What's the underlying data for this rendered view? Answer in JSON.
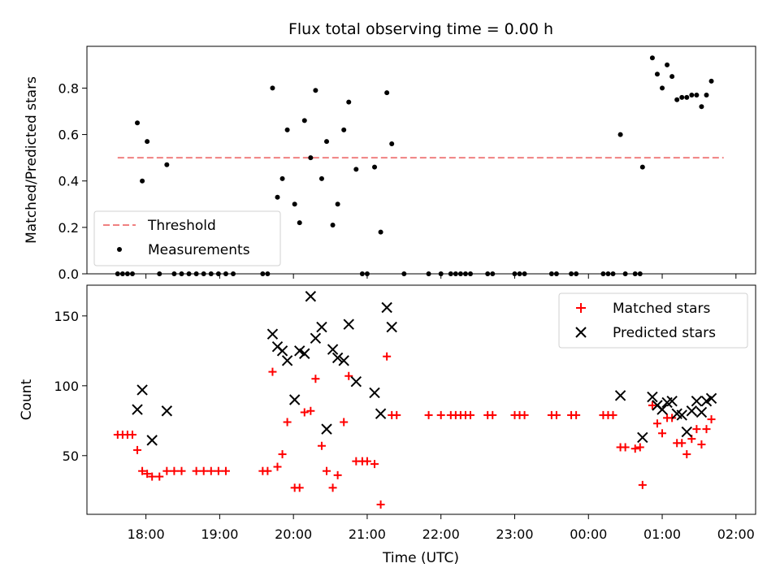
{
  "chart_data": [
    {
      "type": "scatter",
      "title": "Flux total observing time = 0.00 h",
      "xlabel": "",
      "ylabel": "Matched/Predicted stars",
      "ylim": [
        0,
        0.98
      ],
      "xlim": [
        "17:12",
        "02:16"
      ],
      "yticks": [
        0.0,
        0.2,
        0.4,
        0.6,
        0.8
      ],
      "ytick_labels": [
        "0.0",
        "0.2",
        "0.4",
        "0.6",
        "0.8"
      ],
      "grid": false,
      "legend_position": "lower-left",
      "threshold": {
        "name": "Threshold",
        "value": 0.5,
        "x_start": "17:37",
        "x_end": "01:50",
        "color": "#f08080",
        "style": "dashed"
      },
      "series": [
        {
          "name": "Measurements",
          "color": "#000000",
          "marker": "dot",
          "points": [
            [
              "17:37",
              0
            ],
            [
              "17:41",
              0
            ],
            [
              "17:45",
              0
            ],
            [
              "17:49",
              0
            ],
            [
              "17:53",
              0.65
            ],
            [
              "17:57",
              0.4
            ],
            [
              "18:01",
              0.57
            ],
            [
              "18:11",
              0
            ],
            [
              "18:17",
              0.47
            ],
            [
              "18:23",
              0
            ],
            [
              "18:29",
              0
            ],
            [
              "18:35",
              0
            ],
            [
              "18:41",
              0
            ],
            [
              "18:47",
              0
            ],
            [
              "18:53",
              0
            ],
            [
              "18:59",
              0
            ],
            [
              "19:05",
              0
            ],
            [
              "19:11",
              0
            ],
            [
              "19:35",
              0
            ],
            [
              "19:39",
              0
            ],
            [
              "19:43",
              0.8
            ],
            [
              "19:47",
              0.33
            ],
            [
              "19:51",
              0.41
            ],
            [
              "19:55",
              0.62
            ],
            [
              "20:01",
              0.3
            ],
            [
              "20:05",
              0.22
            ],
            [
              "20:09",
              0.66
            ],
            [
              "20:14",
              0.5
            ],
            [
              "20:18",
              0.79
            ],
            [
              "20:23",
              0.41
            ],
            [
              "20:27",
              0.57
            ],
            [
              "20:32",
              0.21
            ],
            [
              "20:36",
              0.3
            ],
            [
              "20:41",
              0.62
            ],
            [
              "20:45",
              0.74
            ],
            [
              "20:51",
              0.45
            ],
            [
              "20:56",
              0
            ],
            [
              "21:00",
              0
            ],
            [
              "21:06",
              0.46
            ],
            [
              "21:11",
              0.18
            ],
            [
              "21:16",
              0.78
            ],
            [
              "21:20",
              0.56
            ],
            [
              "21:30",
              0
            ],
            [
              "21:50",
              0
            ],
            [
              "22:00",
              0
            ],
            [
              "22:08",
              0
            ],
            [
              "22:12",
              0
            ],
            [
              "22:16",
              0
            ],
            [
              "22:20",
              0
            ],
            [
              "22:24",
              0
            ],
            [
              "22:38",
              0
            ],
            [
              "22:42",
              0
            ],
            [
              "23:00",
              0
            ],
            [
              "23:04",
              0
            ],
            [
              "23:08",
              0
            ],
            [
              "23:30",
              0
            ],
            [
              "23:34",
              0
            ],
            [
              "23:46",
              0
            ],
            [
              "23:50",
              0
            ],
            [
              "00:12",
              0
            ],
            [
              "00:16",
              0
            ],
            [
              "00:20",
              0
            ],
            [
              "00:26",
              0.6
            ],
            [
              "00:30",
              0
            ],
            [
              "00:38",
              0
            ],
            [
              "00:42",
              0
            ],
            [
              "00:44",
              0.46
            ],
            [
              "00:52",
              0.93
            ],
            [
              "00:56",
              0.86
            ],
            [
              "01:00",
              0.8
            ],
            [
              "01:04",
              0.9
            ],
            [
              "01:08",
              0.85
            ],
            [
              "01:12",
              0.75
            ],
            [
              "01:16",
              0.76
            ],
            [
              "01:20",
              0.76
            ],
            [
              "01:24",
              0.77
            ],
            [
              "01:28",
              0.77
            ],
            [
              "01:32",
              0.72
            ],
            [
              "01:36",
              0.77
            ],
            [
              "01:40",
              0.83
            ]
          ]
        }
      ]
    },
    {
      "type": "scatter",
      "title": "",
      "xlabel": "Time (UTC)",
      "ylabel": "Count",
      "ylim": [
        8,
        172
      ],
      "xlim": [
        "17:12",
        "02:16"
      ],
      "yticks": [
        50,
        100,
        150
      ],
      "ytick_labels": [
        "50",
        "100",
        "150"
      ],
      "xticks": [
        "18:00",
        "19:00",
        "20:00",
        "21:00",
        "22:00",
        "23:00",
        "00:00",
        "01:00",
        "02:00"
      ],
      "grid": false,
      "legend_position": "upper-right",
      "series": [
        {
          "name": "Matched stars",
          "color": "#ff0000",
          "marker": "plus",
          "points": [
            [
              "17:37",
              65
            ],
            [
              "17:41",
              65
            ],
            [
              "17:45",
              65
            ],
            [
              "17:49",
              65
            ],
            [
              "17:53",
              54
            ],
            [
              "17:57",
              39
            ],
            [
              "18:01",
              37
            ],
            [
              "18:05",
              35
            ],
            [
              "18:11",
              35
            ],
            [
              "18:17",
              39
            ],
            [
              "18:23",
              39
            ],
            [
              "18:29",
              39
            ],
            [
              "18:41",
              39
            ],
            [
              "18:47",
              39
            ],
            [
              "18:53",
              39
            ],
            [
              "18:59",
              39
            ],
            [
              "19:05",
              39
            ],
            [
              "19:35",
              39
            ],
            [
              "19:39",
              39
            ],
            [
              "19:43",
              110
            ],
            [
              "19:47",
              42
            ],
            [
              "19:51",
              51
            ],
            [
              "19:55",
              74
            ],
            [
              "20:01",
              27
            ],
            [
              "20:05",
              27
            ],
            [
              "20:09",
              81
            ],
            [
              "20:14",
              82
            ],
            [
              "20:18",
              105
            ],
            [
              "20:23",
              57
            ],
            [
              "20:27",
              39
            ],
            [
              "20:32",
              27
            ],
            [
              "20:36",
              36
            ],
            [
              "20:41",
              74
            ],
            [
              "20:45",
              107
            ],
            [
              "20:51",
              46
            ],
            [
              "20:56",
              46
            ],
            [
              "21:00",
              46
            ],
            [
              "21:06",
              44
            ],
            [
              "21:11",
              15
            ],
            [
              "21:16",
              121
            ],
            [
              "21:20",
              79
            ],
            [
              "21:24",
              79
            ],
            [
              "21:50",
              79
            ],
            [
              "22:00",
              79
            ],
            [
              "22:08",
              79
            ],
            [
              "22:12",
              79
            ],
            [
              "22:16",
              79
            ],
            [
              "22:20",
              79
            ],
            [
              "22:24",
              79
            ],
            [
              "22:38",
              79
            ],
            [
              "22:42",
              79
            ],
            [
              "23:00",
              79
            ],
            [
              "23:04",
              79
            ],
            [
              "23:08",
              79
            ],
            [
              "23:30",
              79
            ],
            [
              "23:34",
              79
            ],
            [
              "23:46",
              79
            ],
            [
              "23:50",
              79
            ],
            [
              "00:12",
              79
            ],
            [
              "00:16",
              79
            ],
            [
              "00:20",
              79
            ],
            [
              "00:26",
              56
            ],
            [
              "00:30",
              56
            ],
            [
              "00:38",
              55
            ],
            [
              "00:42",
              56
            ],
            [
              "00:44",
              29
            ],
            [
              "00:52",
              86
            ],
            [
              "00:56",
              73
            ],
            [
              "01:00",
              66
            ],
            [
              "01:04",
              77
            ],
            [
              "01:08",
              77
            ],
            [
              "01:12",
              59
            ],
            [
              "01:16",
              59
            ],
            [
              "01:20",
              51
            ],
            [
              "01:24",
              62
            ],
            [
              "01:28",
              69
            ],
            [
              "01:32",
              58
            ],
            [
              "01:36",
              69
            ],
            [
              "01:40",
              76
            ]
          ]
        },
        {
          "name": "Predicted stars",
          "color": "#000000",
          "marker": "x",
          "points": [
            [
              "17:53",
              83
            ],
            [
              "17:57",
              97
            ],
            [
              "18:05",
              61
            ],
            [
              "18:17",
              82
            ],
            [
              "19:43",
              137
            ],
            [
              "19:47",
              128
            ],
            [
              "19:51",
              125
            ],
            [
              "19:55",
              118
            ],
            [
              "20:01",
              90
            ],
            [
              "20:05",
              125
            ],
            [
              "20:09",
              123
            ],
            [
              "20:14",
              164
            ],
            [
              "20:18",
              134
            ],
            [
              "20:23",
              142
            ],
            [
              "20:27",
              69
            ],
            [
              "20:32",
              126
            ],
            [
              "20:36",
              120
            ],
            [
              "20:41",
              118
            ],
            [
              "20:45",
              144
            ],
            [
              "20:51",
              103
            ],
            [
              "21:06",
              95
            ],
            [
              "21:11",
              80
            ],
            [
              "21:16",
              156
            ],
            [
              "21:20",
              142
            ],
            [
              "00:26",
              93
            ],
            [
              "00:44",
              63
            ],
            [
              "00:52",
              92
            ],
            [
              "00:56",
              86
            ],
            [
              "01:00",
              83
            ],
            [
              "01:04",
              88
            ],
            [
              "01:08",
              89
            ],
            [
              "01:12",
              80
            ],
            [
              "01:16",
              79
            ],
            [
              "01:20",
              67
            ],
            [
              "01:24",
              82
            ],
            [
              "01:28",
              89
            ],
            [
              "01:32",
              81
            ],
            [
              "01:36",
              89
            ],
            [
              "01:40",
              91
            ]
          ]
        }
      ]
    }
  ]
}
